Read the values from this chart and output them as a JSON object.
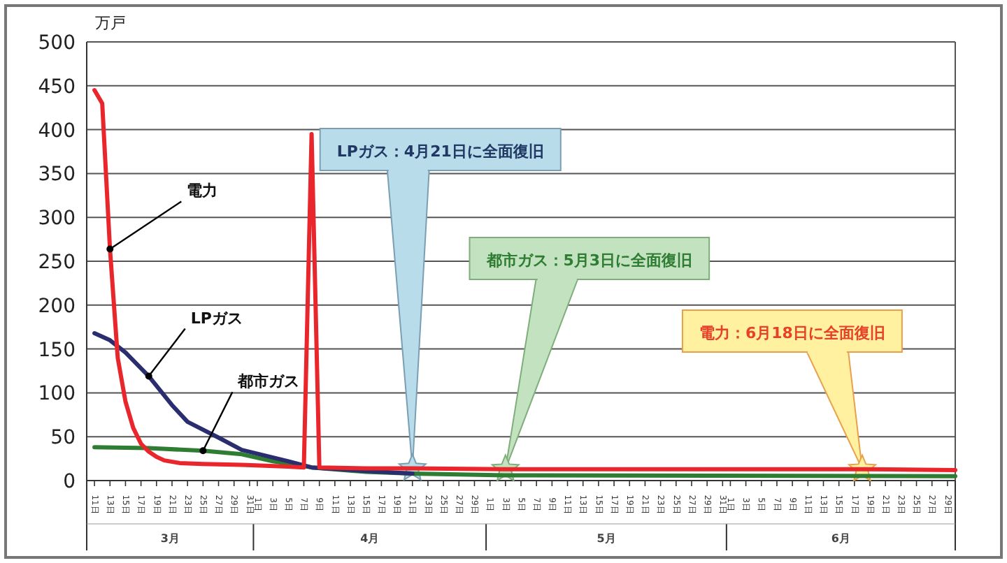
{
  "chart_data": {
    "type": "line",
    "ylabel": "万戸",
    "ylim": [
      0,
      500
    ],
    "yticks": [
      0,
      50,
      100,
      150,
      200,
      250,
      300,
      350,
      400,
      450,
      500
    ],
    "grid": "y",
    "xlim": [
      "--03-10",
      "--06-30"
    ],
    "xticks": [
      {
        "value": "--03-11",
        "label": "11日"
      },
      {
        "value": "--03-13",
        "label": "13日"
      },
      {
        "value": "--03-15",
        "label": "15日"
      },
      {
        "value": "--03-17",
        "label": "17日"
      },
      {
        "value": "--03-19",
        "label": "19日"
      },
      {
        "value": "--03-21",
        "label": "21日"
      },
      {
        "value": "--03-23",
        "label": "23日"
      },
      {
        "value": "--03-25",
        "label": "25日"
      },
      {
        "value": "--03-27",
        "label": "27日"
      },
      {
        "value": "--03-29",
        "label": "29日"
      },
      {
        "value": "--03-31",
        "label": "31日"
      },
      {
        "value": "--04-01",
        "label": "1日"
      },
      {
        "value": "--04-03",
        "label": "3日"
      },
      {
        "value": "--04-05",
        "label": "5日"
      },
      {
        "value": "--04-07",
        "label": "7日"
      },
      {
        "value": "--04-09",
        "label": "9日"
      },
      {
        "value": "--04-11",
        "label": "11日"
      },
      {
        "value": "--04-13",
        "label": "13日"
      },
      {
        "value": "--04-15",
        "label": "15日"
      },
      {
        "value": "--04-17",
        "label": "17日"
      },
      {
        "value": "--04-19",
        "label": "19日"
      },
      {
        "value": "--04-21",
        "label": "21日"
      },
      {
        "value": "--04-23",
        "label": "23日"
      },
      {
        "value": "--04-25",
        "label": "25日"
      },
      {
        "value": "--04-27",
        "label": "27日"
      },
      {
        "value": "--04-29",
        "label": "29日"
      },
      {
        "value": "--05-01",
        "label": "1日"
      },
      {
        "value": "--05-03",
        "label": "3日"
      },
      {
        "value": "--05-05",
        "label": "5日"
      },
      {
        "value": "--05-07",
        "label": "7日"
      },
      {
        "value": "--05-09",
        "label": "9日"
      },
      {
        "value": "--05-11",
        "label": "11日"
      },
      {
        "value": "--05-13",
        "label": "13日"
      },
      {
        "value": "--05-15",
        "label": "15日"
      },
      {
        "value": "--05-17",
        "label": "17日"
      },
      {
        "value": "--05-19",
        "label": "19日"
      },
      {
        "value": "--05-21",
        "label": "21日"
      },
      {
        "value": "--05-23",
        "label": "23日"
      },
      {
        "value": "--05-25",
        "label": "25日"
      },
      {
        "value": "--05-27",
        "label": "27日"
      },
      {
        "value": "--05-29",
        "label": "29日"
      },
      {
        "value": "--05-31",
        "label": "31日"
      },
      {
        "value": "--06-01",
        "label": "1日"
      },
      {
        "value": "--06-03",
        "label": "3日"
      },
      {
        "value": "--06-05",
        "label": "5日"
      },
      {
        "value": "--06-07",
        "label": "7日"
      },
      {
        "value": "--06-09",
        "label": "9日"
      },
      {
        "value": "--06-11",
        "label": "11日"
      },
      {
        "value": "--06-13",
        "label": "13日"
      },
      {
        "value": "--06-15",
        "label": "15日"
      },
      {
        "value": "--06-17",
        "label": "17日"
      },
      {
        "value": "--06-19",
        "label": "19日"
      },
      {
        "value": "--06-21",
        "label": "21日"
      },
      {
        "value": "--06-23",
        "label": "23日"
      },
      {
        "value": "--06-25",
        "label": "25日"
      },
      {
        "value": "--06-27",
        "label": "27日"
      },
      {
        "value": "--06-29",
        "label": "29日"
      }
    ],
    "series": [
      {
        "name": "電力",
        "color": "#e8262b",
        "x": [
          "--03-11",
          "--03-12",
          "--03-13",
          "--03-14",
          "--03-15",
          "--03-16",
          "--03-17",
          "--03-18",
          "--03-19",
          "--03-20",
          "--03-22",
          "--03-25",
          "--03-30",
          "--04-05",
          "--04-07",
          "--04-08",
          "--04-09",
          "--04-15",
          "--04-21",
          "--05-03",
          "--06-18",
          "--06-30"
        ],
        "values": [
          445,
          430,
          264,
          140,
          90,
          60,
          42,
          33,
          27,
          23,
          20,
          19,
          18,
          16,
          15,
          395,
          15,
          14,
          14,
          13,
          13,
          12
        ]
      },
      {
        "name": "LPガス",
        "color": "#2b2e6e",
        "x": [
          "--03-11",
          "--03-13",
          "--03-15",
          "--03-18",
          "--03-21",
          "--03-23",
          "--03-27",
          "--03-30",
          "--04-05",
          "--04-08",
          "--04-15",
          "--04-21"
        ],
        "values": [
          168,
          160,
          146,
          119,
          86,
          67,
          49,
          35,
          22,
          15,
          11,
          8
        ]
      },
      {
        "name": "都市ガス",
        "color": "#2e7d32",
        "x": [
          "--03-11",
          "--03-18",
          "--03-25",
          "--03-30",
          "--04-03",
          "--04-08",
          "--04-15",
          "--04-21",
          "--05-03",
          "--06-30"
        ],
        "values": [
          38,
          37,
          34,
          30,
          22,
          15,
          10,
          8,
          6,
          5
        ]
      }
    ],
    "annotations": [
      {
        "text": "LPガス：4月21日に全面復旧",
        "x": "--04-21",
        "y": 14
      },
      {
        "text": "都市ガス：5月3日に全面復旧",
        "x": "--05-03",
        "y": 13
      },
      {
        "text": "電力：6月18日に全面復旧",
        "x": "--06-18",
        "y": 13
      },
      "3月",
      "4月",
      "5月",
      "6月"
    ]
  }
}
